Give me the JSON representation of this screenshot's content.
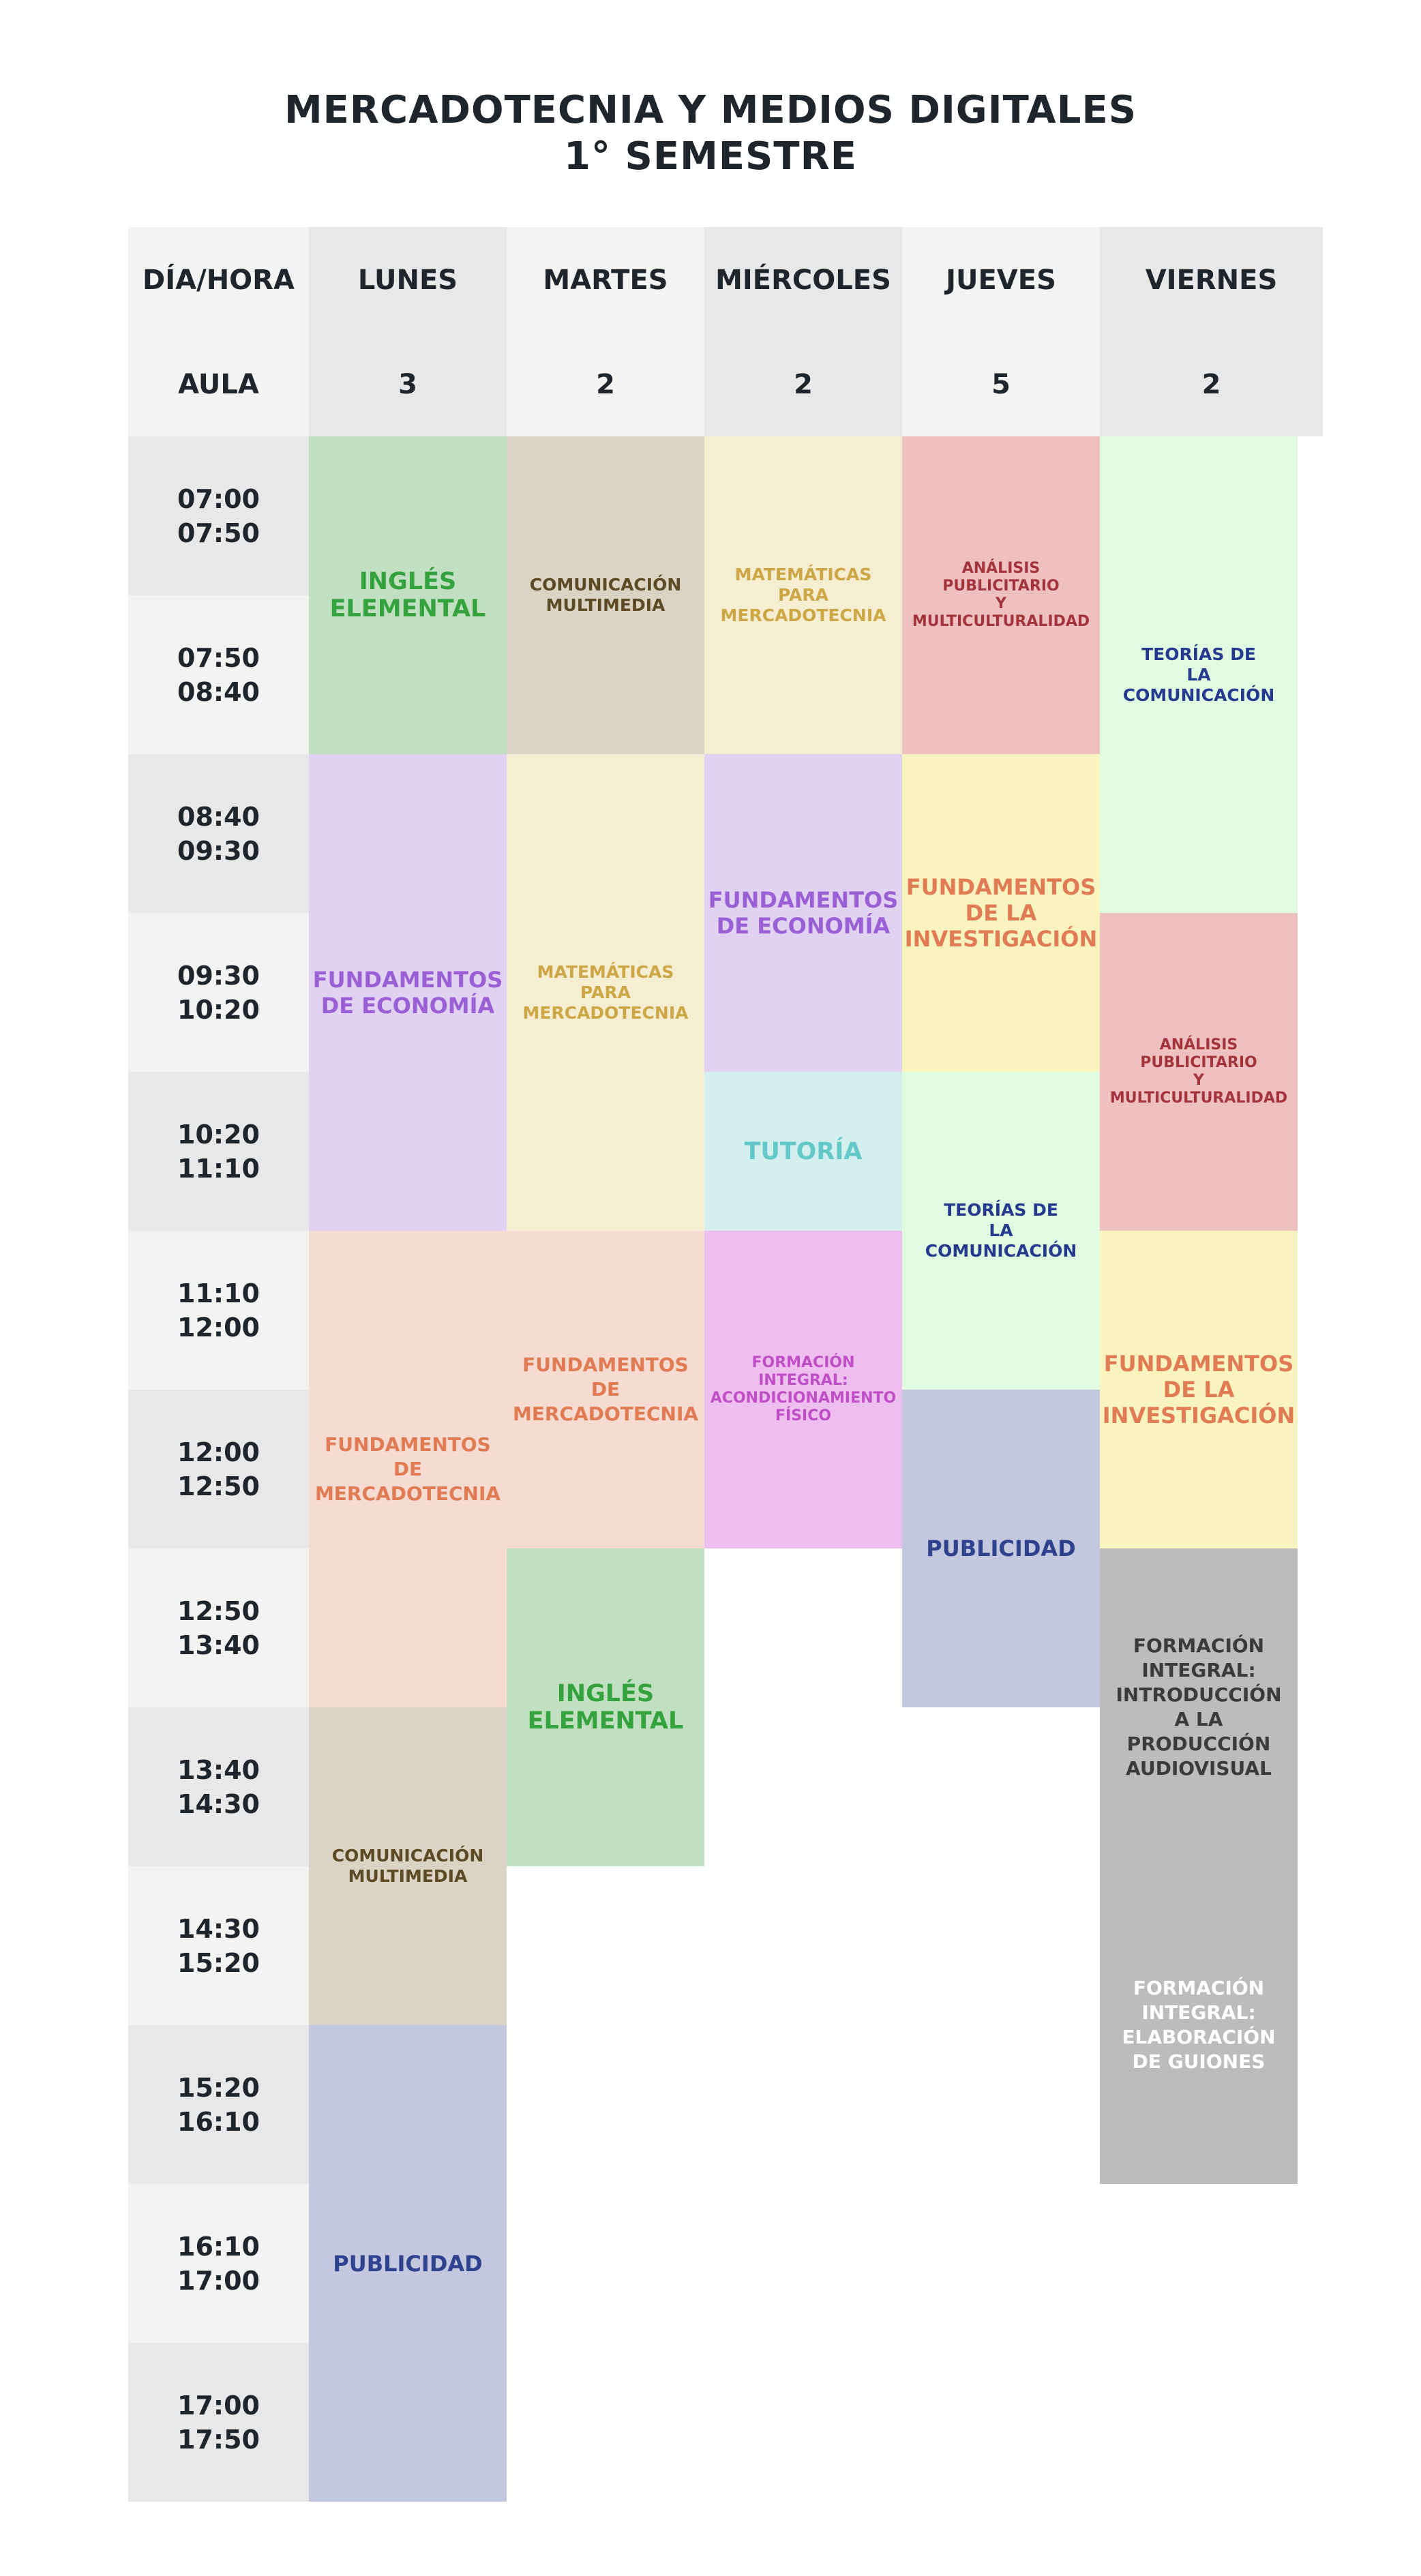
{
  "title": {
    "line1": "MERCADOTECNIA Y MEDIOS DIGITALES",
    "line2": "1° SEMESTRE"
  },
  "header": {
    "corner_day": "DÍA/HORA",
    "corner_room": "AULA",
    "days": [
      {
        "label": "LUNES",
        "room": "3"
      },
      {
        "label": "MARTES",
        "room": "2"
      },
      {
        "label": "MIÉRCOLES",
        "room": "2"
      },
      {
        "label": "JUEVES",
        "room": "5"
      },
      {
        "label": "VIERNES",
        "room": "2"
      }
    ]
  },
  "time_slots": [
    {
      "start": "07:00",
      "end": "07:50"
    },
    {
      "start": "07:50",
      "end": "08:40"
    },
    {
      "start": "08:40",
      "end": "09:30"
    },
    {
      "start": "09:30",
      "end": "10:20"
    },
    {
      "start": "10:20",
      "end": "11:10"
    },
    {
      "start": "11:10",
      "end": "12:00"
    },
    {
      "start": "12:00",
      "end": "12:50"
    },
    {
      "start": "12:50",
      "end": "13:40"
    },
    {
      "start": "13:40",
      "end": "14:30"
    },
    {
      "start": "14:30",
      "end": "15:20"
    },
    {
      "start": "15:20",
      "end": "16:10"
    },
    {
      "start": "16:10",
      "end": "17:00"
    },
    {
      "start": "17:00",
      "end": "17:50"
    }
  ],
  "colors": {
    "ingles": "#c1e0c2",
    "comunicacion": "#dbd3c3",
    "matematicas": "#f6eed0",
    "analisis": "#efc0c0",
    "teorias": "#e0fbdf",
    "economia": "#e1d2f2",
    "investigacion": "#f8f3bf",
    "tutoria": "#d3f0ee",
    "mercadotecnia": "#f6dbd1",
    "acondicionamiento": "#eebfee",
    "publicidad": "#c4c8de",
    "formacion_integral": "#bcbcbc"
  },
  "classes": {
    "lunes": [
      {
        "subject": "INGLÉS\nELEMENTAL"
      },
      {
        "subject": "FUNDAMENTOS\nDE ECONOMÍA"
      },
      {
        "subject": "FUNDAMENTOS\nDE\nMERCADOTECNIA"
      },
      {
        "subject": "COMUNICACIÓN\nMULTIMEDIA"
      },
      {
        "subject": "PUBLICIDAD"
      }
    ],
    "martes": [
      {
        "subject": "COMUNICACIÓN\nMULTIMEDIA"
      },
      {
        "subject": "MATEMÁTICAS\nPARA\nMERCADOTECNIA"
      },
      {
        "subject": "FUNDAMENTOS\nDE\nMERCADOTECNIA"
      },
      {
        "subject": "INGLÉS\nELEMENTAL"
      }
    ],
    "miercoles": [
      {
        "subject": "MATEMÁTICAS\nPARA\nMERCADOTECNIA"
      },
      {
        "subject": "FUNDAMENTOS\nDE ECONOMÍA"
      },
      {
        "subject": "TUTORÍA"
      },
      {
        "subject": "FORMACIÓN\nINTEGRAL:\nACONDICIONAMIENTO\nFÍSICO"
      }
    ],
    "jueves": [
      {
        "subject": "ANÁLISIS\nPUBLICITARIO\nY\nMULTICULTURALIDAD"
      },
      {
        "subject": "FUNDAMENTOS\nDE LA\nINVESTIGACIÓN"
      },
      {
        "subject": "TEORÍAS DE\nLA COMUNICACIÓN"
      },
      {
        "subject": "PUBLICIDAD"
      }
    ],
    "viernes": [
      {
        "subject": "TEORÍAS DE\nLA COMUNICACIÓN"
      },
      {
        "subject": "ANÁLISIS\nPUBLICITARIO\nY\nMULTICULTURALIDAD"
      },
      {
        "subject": "FUNDAMENTOS\nDE LA\nINVESTIGACIÓN"
      },
      {
        "subject": "FORMACIÓN\nINTEGRAL:\nINTRODUCCIÓN\nA LA\nPRODUCCIÓN\nAUDIOVISUAL"
      },
      {
        "subject": "FORMACIÓN\nINTEGRAL:\nELABORACIÓN\nDE GUIONES"
      }
    ]
  }
}
